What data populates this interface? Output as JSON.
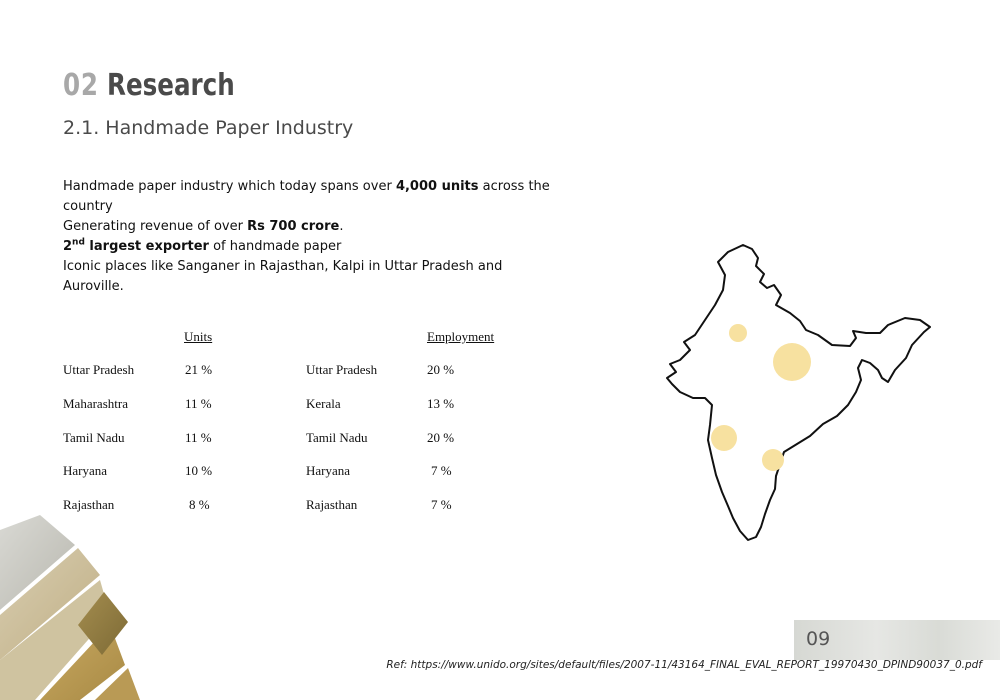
{
  "header": {
    "section_number": "02",
    "section_title": "Research",
    "subtitle": "2.1. Handmade Paper Industry"
  },
  "intro": {
    "line1_pre": "Handmade paper industry which today spans over ",
    "line1_bold": "4,000 units",
    "line1_post": " across the country",
    "line2_pre": "Generating revenue of over ",
    "line2_bold": "Rs 700 crore",
    "line2_post": ".",
    "line3_num": "2",
    "line3_sup": "nd",
    "line3_bold": " largest exporter",
    "line3_post": " of handmade paper",
    "line4": "Iconic places like Sanganer in Rajasthan, Kalpi in Uttar Pradesh and Auroville."
  },
  "units_table": {
    "header": "Units",
    "rows": [
      {
        "state": "Uttar Pradesh",
        "value": "21 %"
      },
      {
        "state": "Maharashtra",
        "value": "11 %"
      },
      {
        "state": "Tamil Nadu",
        "value": "11 %"
      },
      {
        "state": "Haryana",
        "value": "10 %"
      },
      {
        "state": "Rajasthan",
        "value": "8 %"
      }
    ]
  },
  "employment_table": {
    "header": "Employment",
    "rows": [
      {
        "state": "Uttar Pradesh",
        "value": "20 %"
      },
      {
        "state": "Kerala",
        "value": "13 %"
      },
      {
        "state": "Tamil Nadu",
        "value": "20 %"
      },
      {
        "state": "Haryana",
        "value": "7 %"
      },
      {
        "state": "Rajasthan",
        "value": "7 %"
      }
    ]
  },
  "map": {
    "outline_color": "#111111",
    "marker_color": "#f7e1a0"
  },
  "footer": {
    "page_number": "09",
    "reference": "Ref: https://www.unido.org/sites/default/files/2007-11/43164_FINAL_EVAL_REPORT_19970430_DPIND90037_0.pdf"
  }
}
